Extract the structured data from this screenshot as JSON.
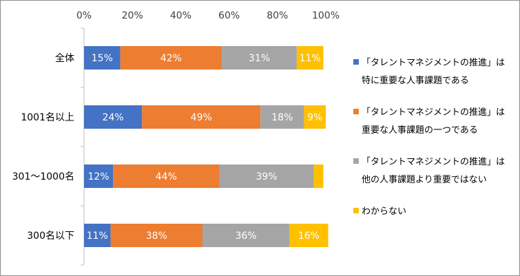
{
  "chart_data": {
    "type": "bar",
    "orientation": "horizontal",
    "stacked": true,
    "categories": [
      "全体",
      "1001名以上",
      "301～1000名",
      "300名以下"
    ],
    "x_ticks": [
      "0%",
      "20%",
      "40%",
      "60%",
      "80%",
      "100%"
    ],
    "xlim": [
      0,
      100
    ],
    "grid": false,
    "legend_position": "right",
    "series": [
      {
        "name": "「タレントマネジメントの推進」は特に重要な人事課題である",
        "name_lines": [
          "「タレントマネジメントの推進」は",
          "特に重要な人事課題である"
        ],
        "color": "#4472c4",
        "values": [
          15,
          24,
          12,
          11
        ],
        "labels": [
          "15%",
          "24%",
          "12%",
          "11%"
        ]
      },
      {
        "name": "「タレントマネジメントの推進」は重要な人事課題の一つである",
        "name_lines": [
          "「タレントマネジメントの推進」は",
          "重要な人事課題の一つである"
        ],
        "color": "#ed7d31",
        "values": [
          42,
          49,
          44,
          38
        ],
        "labels": [
          "42%",
          "49%",
          "44%",
          "38%"
        ]
      },
      {
        "name": "「タレントマネジメントの推進」は他の人事課題より重要ではない",
        "name_lines": [
          "「タレントマネジメントの推進」は",
          "他の人事課題より重要ではない"
        ],
        "color": "#a5a5a5",
        "values": [
          31,
          18,
          39,
          36
        ],
        "labels": [
          "31%",
          "18%",
          "39%",
          "36%"
        ]
      },
      {
        "name": "わからない",
        "name_lines": [
          "わからない"
        ],
        "color": "#ffc000",
        "values": [
          11,
          9,
          4,
          16
        ],
        "labels": [
          "11%",
          "9%",
          "",
          "16%"
        ]
      }
    ]
  }
}
